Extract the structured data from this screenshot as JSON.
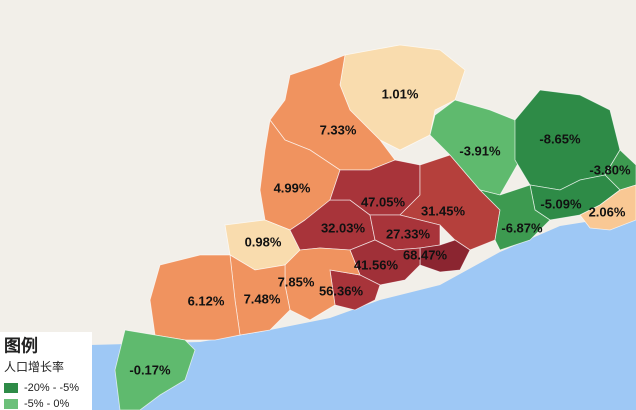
{
  "legend": {
    "title": "图例",
    "subtitle": "人口增长率",
    "items": [
      {
        "label": "-20% - -5%",
        "color": "#2e8b47"
      },
      {
        "label": "-5% - 0%",
        "color": "#6cc07a"
      }
    ]
  },
  "regions": [
    {
      "label": "1.01%",
      "color": "#f9dcae"
    },
    {
      "label": "7.33%",
      "color": "#f0935f"
    },
    {
      "label": "4.99%",
      "color": "#f0935f"
    },
    {
      "label": "0.98%",
      "color": "#f9dcae"
    },
    {
      "label": "32.03%",
      "color": "#a8343a"
    },
    {
      "label": "47.05%",
      "color": "#a8343a"
    },
    {
      "label": "31.45%",
      "color": "#b5403c"
    },
    {
      "label": "27.33%",
      "color": "#a8343a"
    },
    {
      "label": "68.47%",
      "color": "#8b2530"
    },
    {
      "label": "41.56%",
      "color": "#a03038"
    },
    {
      "label": "56.36%",
      "color": "#a8343a"
    },
    {
      "label": "7.85%",
      "color": "#f0935f"
    },
    {
      "label": "7.48%",
      "color": "#f0935f"
    },
    {
      "label": "6.12%",
      "color": "#f0935f"
    },
    {
      "label": "-0.17%",
      "color": "#5fba6e"
    },
    {
      "label": "-3.91%",
      "color": "#5fba6e"
    },
    {
      "label": "-8.65%",
      "color": "#2e8b47"
    },
    {
      "label": "-3.80%",
      "color": "#3d9a50"
    },
    {
      "label": "-5.09%",
      "color": "#2e8b47"
    },
    {
      "label": "2.06%",
      "color": "#f9c894"
    },
    {
      "label": "-6.87%",
      "color": "#3d9a50"
    }
  ]
}
